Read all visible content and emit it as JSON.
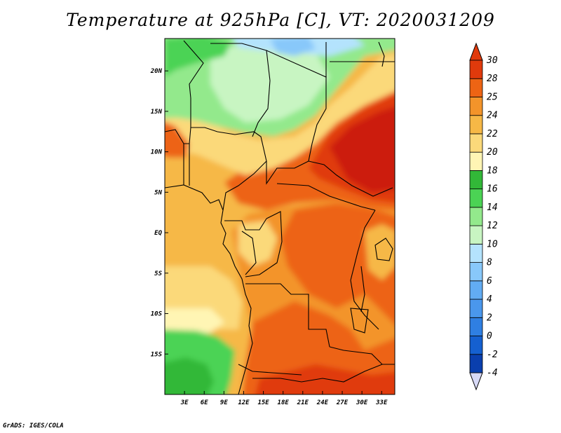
{
  "title": "Temperature at 925hPa [C], VT: 2020031209",
  "credit": "GrADS: IGES/COLA",
  "map": {
    "lon_range": [
      0,
      35
    ],
    "lat_range": [
      -20,
      24
    ],
    "lon_ticks": [
      {
        "value": 3,
        "label": "3E"
      },
      {
        "value": 6,
        "label": "6E"
      },
      {
        "value": 9,
        "label": "9E"
      },
      {
        "value": 12,
        "label": "12E"
      },
      {
        "value": 15,
        "label": "15E"
      },
      {
        "value": 18,
        "label": "18E"
      },
      {
        "value": 21,
        "label": "21E"
      },
      {
        "value": 24,
        "label": "24E"
      },
      {
        "value": 27,
        "label": "27E"
      },
      {
        "value": 30,
        "label": "30E"
      },
      {
        "value": 33,
        "label": "33E"
      }
    ],
    "lat_ticks": [
      {
        "value": 20,
        "label": "20N"
      },
      {
        "value": 15,
        "label": "15N"
      },
      {
        "value": 10,
        "label": "10N"
      },
      {
        "value": 5,
        "label": "5N"
      },
      {
        "value": 0,
        "label": "EQ"
      },
      {
        "value": -5,
        "label": "5S"
      },
      {
        "value": -10,
        "label": "10S"
      },
      {
        "value": -15,
        "label": "15S"
      }
    ]
  },
  "colorbar": {
    "levels": [
      "-4",
      "-2",
      "0",
      "2",
      "4",
      "6",
      "8",
      "10",
      "12",
      "14",
      "16",
      "18",
      "20",
      "22",
      "24",
      "25",
      "28",
      "30"
    ],
    "colors": [
      "#18127d",
      "#0a3fae",
      "#1560d0",
      "#2f7fe2",
      "#4a97ec",
      "#62acf3",
      "#88c8fa",
      "#b4e3fd",
      "#c8f5c2",
      "#93e98c",
      "#4bd354",
      "#32b838",
      "#fff5b4",
      "#fbd97a",
      "#f6b846",
      "#f3942a",
      "#ed6414",
      "#e03a0c",
      "#cc1d08"
    ],
    "under_color": "#d7d9f6",
    "over_color": "#e03a0c"
  }
}
